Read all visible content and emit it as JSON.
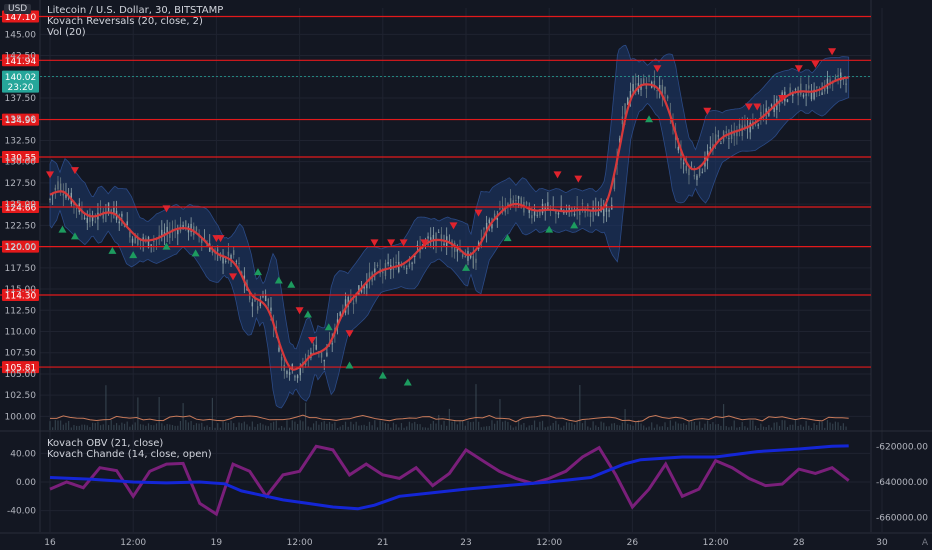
{
  "app": {
    "currency": "USD",
    "auto_label": "A"
  },
  "main_legend": [
    "Litecoin / U.S. Dollar, 30, BITSTAMP",
    "Kovach Reversals (20, close, 2)",
    "Vol (20)"
  ],
  "osc_legend": [
    "Kovach OBV (21, close)",
    "Kovach Chande (14, close, open)"
  ],
  "colors": {
    "background": "#131722",
    "grid": "#1f2330",
    "hline": "#e3191b",
    "candle_up": "#8fa3a8",
    "candle_down": "#6a7a80",
    "band_fill": "#1e3a6e",
    "middle_line": "#d6383a",
    "arrow_up": "#1d9b5f",
    "arrow_down": "#e0232d",
    "obv": "#1426d6",
    "chande": "#7a1f7a",
    "volume": "#c87a5a",
    "current_price": "#26a69a"
  },
  "chart_data": [
    {
      "type": "candlestick",
      "title": "Litecoin / U.S. Dollar, 30, BITSTAMP",
      "ylim": [
        98.4,
        148.1
      ],
      "y_ticks": [
        "100.00",
        "102.50",
        "105.00",
        "107.50",
        "110.00",
        "112.50",
        "115.00",
        "117.50",
        "120.00",
        "122.50",
        "125.00",
        "127.50",
        "130.00",
        "132.50",
        "135.00",
        "137.50",
        "140.00",
        "142.50",
        "145.00"
      ],
      "x_ticks": [
        "16",
        "12:00",
        "19",
        "12:00",
        "21",
        "23",
        "12:00",
        "26",
        "12:00",
        "28",
        "30"
      ],
      "x_tick_pos": [
        0.0,
        1.0,
        2.0,
        3.0,
        4.0,
        5.0,
        6.0,
        7.0,
        8.0,
        9.0,
        10.0
      ],
      "horizontal_levels": [
        {
          "value": 147.1,
          "label": "147.10"
        },
        {
          "value": 141.94,
          "label": "141.94"
        },
        {
          "value": 134.96,
          "label": "134.96"
        },
        {
          "value": 130.55,
          "label": "130.55"
        },
        {
          "value": 124.66,
          "label": "124.66"
        },
        {
          "value": 120.0,
          "label": "120.00"
        },
        {
          "value": 114.3,
          "label": "114.30"
        },
        {
          "value": 105.81,
          "label": "105.81"
        }
      ],
      "current_price": {
        "value": 140.02,
        "label": "140.02",
        "countdown": "23:20"
      },
      "price_path": [
        [
          0.0,
          125.5
        ],
        [
          0.1,
          127.5
        ],
        [
          0.3,
          125.0
        ],
        [
          0.5,
          123.0
        ],
        [
          0.7,
          124.5
        ],
        [
          0.9,
          123.0
        ],
        [
          1.0,
          121.0
        ],
        [
          1.2,
          120.5
        ],
        [
          1.4,
          121.5
        ],
        [
          1.6,
          122.5
        ],
        [
          1.8,
          121.5
        ],
        [
          2.0,
          119.0
        ],
        [
          2.1,
          118.5
        ],
        [
          2.2,
          119.0
        ],
        [
          2.3,
          117.0
        ],
        [
          2.4,
          114.0
        ],
        [
          2.5,
          113.0
        ],
        [
          2.6,
          114.5
        ],
        [
          2.7,
          111.0
        ],
        [
          2.8,
          106.0
        ],
        [
          2.9,
          105.5
        ],
        [
          3.0,
          105.0
        ],
        [
          3.1,
          107.0
        ],
        [
          3.2,
          108.5
        ],
        [
          3.3,
          106.5
        ],
        [
          3.4,
          109.0
        ],
        [
          3.5,
          112.5
        ],
        [
          3.7,
          114.5
        ],
        [
          3.9,
          117.0
        ],
        [
          4.1,
          117.5
        ],
        [
          4.3,
          118.0
        ],
        [
          4.5,
          120.5
        ],
        [
          4.7,
          121.0
        ],
        [
          4.9,
          120.0
        ],
        [
          5.0,
          119.0
        ],
        [
          5.1,
          118.0
        ],
        [
          5.2,
          121.5
        ],
        [
          5.4,
          124.0
        ],
        [
          5.6,
          125.5
        ],
        [
          5.8,
          124.0
        ],
        [
          6.0,
          124.5
        ],
        [
          6.2,
          124.0
        ],
        [
          6.4,
          124.5
        ],
        [
          6.6,
          124.0
        ],
        [
          6.75,
          125.0
        ],
        [
          6.9,
          136.0
        ],
        [
          7.0,
          138.5
        ],
        [
          7.2,
          139.5
        ],
        [
          7.4,
          138.0
        ],
        [
          7.6,
          130.0
        ],
        [
          7.7,
          129.0
        ],
        [
          7.8,
          128.5
        ],
        [
          8.0,
          132.5
        ],
        [
          8.2,
          133.5
        ],
        [
          8.4,
          134.0
        ],
        [
          8.6,
          135.5
        ],
        [
          8.8,
          137.5
        ],
        [
          9.0,
          138.5
        ],
        [
          9.2,
          138.0
        ],
        [
          9.4,
          139.5
        ],
        [
          9.6,
          140.02
        ]
      ],
      "reversals_up": [
        [
          0.15,
          122.0
        ],
        [
          0.3,
          121.2
        ],
        [
          0.75,
          119.5
        ],
        [
          1.0,
          119.0
        ],
        [
          1.4,
          120.0
        ],
        [
          1.75,
          119.2
        ],
        [
          2.5,
          117.0
        ],
        [
          2.75,
          116.0
        ],
        [
          2.9,
          115.5
        ],
        [
          3.1,
          112.0
        ],
        [
          3.35,
          110.5
        ],
        [
          3.6,
          106.0
        ],
        [
          4.0,
          104.8
        ],
        [
          4.3,
          104.0
        ],
        [
          5.0,
          117.5
        ],
        [
          5.5,
          121.0
        ],
        [
          6.0,
          122.0
        ],
        [
          6.3,
          122.5
        ],
        [
          7.2,
          135.0
        ]
      ],
      "reversals_down": [
        [
          0.0,
          128.5
        ],
        [
          0.3,
          129.0
        ],
        [
          1.4,
          124.5
        ],
        [
          2.0,
          121.0
        ],
        [
          2.05,
          121.0
        ],
        [
          2.2,
          116.5
        ],
        [
          3.0,
          112.5
        ],
        [
          3.15,
          109.0
        ],
        [
          3.6,
          109.8
        ],
        [
          3.9,
          120.5
        ],
        [
          4.1,
          120.5
        ],
        [
          4.25,
          120.5
        ],
        [
          4.5,
          120.5
        ],
        [
          4.85,
          122.5
        ],
        [
          5.15,
          124.0
        ],
        [
          6.1,
          128.5
        ],
        [
          6.35,
          128.0
        ],
        [
          7.3,
          141.0
        ],
        [
          7.9,
          136.0
        ],
        [
          8.4,
          136.5
        ],
        [
          8.5,
          136.5
        ],
        [
          8.8,
          137.5
        ],
        [
          9.0,
          141.0
        ],
        [
          9.2,
          141.5
        ],
        [
          9.4,
          143.0
        ]
      ],
      "volume_note": "Vol (20)"
    },
    {
      "type": "line",
      "title": "Kovach OBV (21, close)",
      "series": [
        {
          "name": "Kovach OBV (21, close)",
          "axis": "right",
          "values": [
            [
              0.0,
              -637500
            ],
            [
              0.5,
              -638500
            ],
            [
              1.0,
              -640000
            ],
            [
              1.4,
              -640500
            ],
            [
              1.8,
              -640000
            ],
            [
              2.1,
              -641000
            ],
            [
              2.3,
              -645000
            ],
            [
              2.8,
              -650000
            ],
            [
              3.1,
              -652000
            ],
            [
              3.4,
              -654000
            ],
            [
              3.7,
              -655000
            ],
            [
              3.9,
              -653000
            ],
            [
              4.2,
              -648000
            ],
            [
              4.6,
              -646000
            ],
            [
              5.0,
              -644000
            ],
            [
              5.6,
              -641500
            ],
            [
              6.0,
              -640000
            ],
            [
              6.5,
              -637500
            ],
            [
              6.9,
              -630000
            ],
            [
              7.1,
              -627500
            ],
            [
              7.6,
              -626000
            ],
            [
              8.0,
              -626000
            ],
            [
              8.5,
              -623000
            ],
            [
              9.0,
              -621500
            ],
            [
              9.4,
              -620000
            ],
            [
              9.6,
              -619800
            ]
          ]
        },
        {
          "name": "Kovach Chande (14, close, open)",
          "axis": "left",
          "values": [
            [
              0.0,
              -10.0
            ],
            [
              0.2,
              0.0
            ],
            [
              0.4,
              -8.0
            ],
            [
              0.6,
              20.0
            ],
            [
              0.8,
              16.0
            ],
            [
              1.0,
              -20.0
            ],
            [
              1.2,
              15.0
            ],
            [
              1.4,
              25.0
            ],
            [
              1.6,
              26.0
            ],
            [
              1.8,
              -30.0
            ],
            [
              2.0,
              -45.0
            ],
            [
              2.2,
              25.0
            ],
            [
              2.4,
              15.0
            ],
            [
              2.6,
              -20.0
            ],
            [
              2.8,
              10.0
            ],
            [
              3.0,
              15.0
            ],
            [
              3.2,
              50.0
            ],
            [
              3.4,
              45.0
            ],
            [
              3.6,
              10.0
            ],
            [
              3.8,
              25.0
            ],
            [
              4.0,
              10.0
            ],
            [
              4.2,
              5.0
            ],
            [
              4.4,
              20.0
            ],
            [
              4.6,
              -5.0
            ],
            [
              4.8,
              12.0
            ],
            [
              5.0,
              45.0
            ],
            [
              5.2,
              30.0
            ],
            [
              5.4,
              15.0
            ],
            [
              5.6,
              5.0
            ],
            [
              5.8,
              -2.0
            ],
            [
              6.0,
              5.0
            ],
            [
              6.2,
              15.0
            ],
            [
              6.4,
              35.0
            ],
            [
              6.6,
              48.0
            ],
            [
              6.8,
              10.0
            ],
            [
              7.0,
              -35.0
            ],
            [
              7.2,
              -10.0
            ],
            [
              7.4,
              25.0
            ],
            [
              7.6,
              -20.0
            ],
            [
              7.8,
              -10.0
            ],
            [
              8.0,
              30.0
            ],
            [
              8.2,
              20.0
            ],
            [
              8.4,
              5.0
            ],
            [
              8.6,
              -5.0
            ],
            [
              8.8,
              -3.0
            ],
            [
              9.0,
              18.0
            ],
            [
              9.2,
              12.0
            ],
            [
              9.4,
              20.0
            ],
            [
              9.6,
              2.0
            ]
          ]
        }
      ],
      "left_ticks": [
        "40.00",
        "0.00",
        "-40.00"
      ],
      "left_ylim": [
        -70,
        70
      ],
      "right_ticks": [
        "-620000.00",
        "-640000.00",
        "-660000.00"
      ],
      "right_ylim": [
        -668000,
        -612000
      ]
    }
  ]
}
